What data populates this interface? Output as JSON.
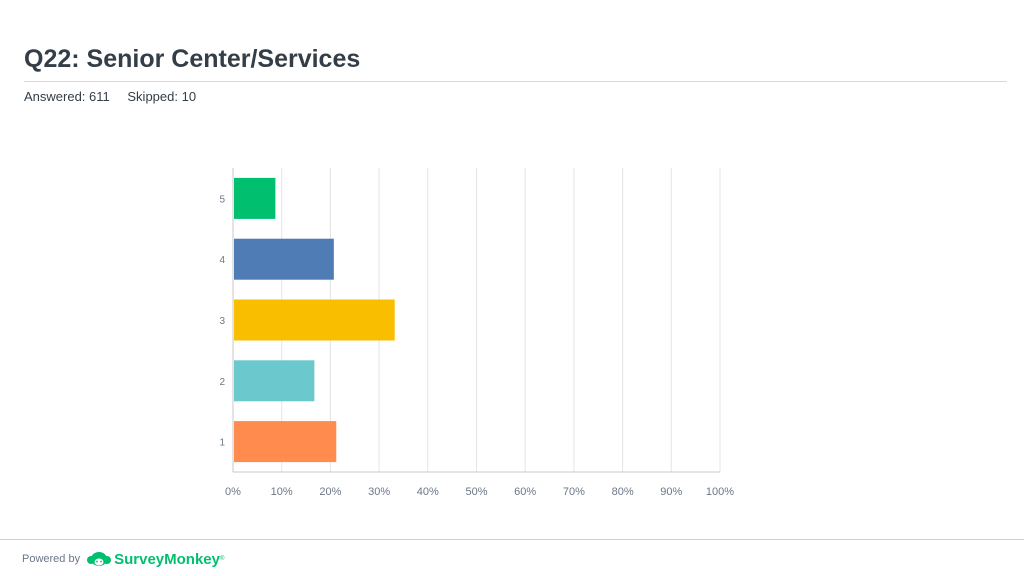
{
  "header": {
    "title": "Q22: Senior Center/Services",
    "answered": "Answered: 611",
    "skipped": "Skipped: 10"
  },
  "footer": {
    "powered_by": "Powered by",
    "brand": "SurveyMonkey",
    "brand_mark": "®",
    "brand_icon": "surveymonkey-logo-icon"
  },
  "chart_data": {
    "type": "bar",
    "orientation": "horizontal",
    "categories": [
      "5",
      "4",
      "3",
      "2",
      "1"
    ],
    "values": [
      8.5,
      20.5,
      33,
      16.5,
      21
    ],
    "colors": [
      "#00bf6f",
      "#507cb6",
      "#f9be00",
      "#6bc8cd",
      "#ff8b4f"
    ],
    "x_ticks": [
      "0%",
      "10%",
      "20%",
      "30%",
      "40%",
      "50%",
      "60%",
      "70%",
      "80%",
      "90%",
      "100%"
    ],
    "xlim": [
      0,
      100
    ],
    "grid": true,
    "title": "",
    "xlabel": "",
    "ylabel": ""
  }
}
